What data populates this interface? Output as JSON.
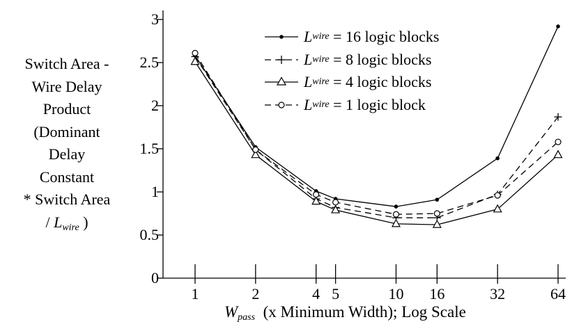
{
  "chart_data": {
    "type": "line",
    "xscale": "log",
    "x": [
      1,
      2,
      4,
      5,
      10,
      16,
      32,
      64
    ],
    "x_tick_labels": [
      "1",
      "2",
      "4",
      "5",
      "10",
      "16",
      "32",
      "64"
    ],
    "ylim": [
      0,
      3
    ],
    "y_ticks": [
      0,
      0.5,
      1,
      1.5,
      2,
      2.5,
      3
    ],
    "y_tick_labels": [
      "0",
      "0.5",
      "1",
      "1.5",
      "2",
      "2.5",
      "3"
    ],
    "ylabel_lines": [
      "Switch Area -",
      "Wire Delay",
      "Product",
      "(Dominant",
      "Delay",
      "Constant",
      "* Switch Area"
    ],
    "ylabel_last_prefix": "/ ",
    "ylabel_last_var": "L",
    "ylabel_last_sub": "wire",
    "ylabel_last_suffix": " )",
    "xlabel_var": "W",
    "xlabel_sub": "pass",
    "xlabel_rest": "  (x Minimum Width); Log Scale",
    "grid": false,
    "legend_position": "top-center",
    "series": [
      {
        "name_var": "L",
        "name_sub": "wire",
        "name_rest": " = 16 logic blocks",
        "style": "solid",
        "marker": "dot",
        "values": [
          2.58,
          1.52,
          1.01,
          0.92,
          0.83,
          0.91,
          1.39,
          2.92
        ]
      },
      {
        "name_var": "L",
        "name_sub": "wire",
        "name_rest": " = 8 logic blocks",
        "style": "dashed",
        "marker": "plus",
        "values": [
          2.57,
          1.49,
          0.92,
          0.82,
          0.7,
          0.7,
          0.97,
          1.87
        ]
      },
      {
        "name_var": "L",
        "name_sub": "wire",
        "name_rest": " = 4 logic blocks",
        "style": "solid",
        "marker": "triangle",
        "values": [
          2.51,
          1.43,
          0.89,
          0.79,
          0.63,
          0.62,
          0.8,
          1.43
        ]
      },
      {
        "name_var": "L",
        "name_sub": "wire",
        "name_rest": " = 1 logic block",
        "style": "dashed",
        "marker": "circle",
        "values": [
          2.61,
          1.49,
          0.97,
          0.88,
          0.74,
          0.75,
          0.96,
          1.58
        ]
      }
    ]
  }
}
